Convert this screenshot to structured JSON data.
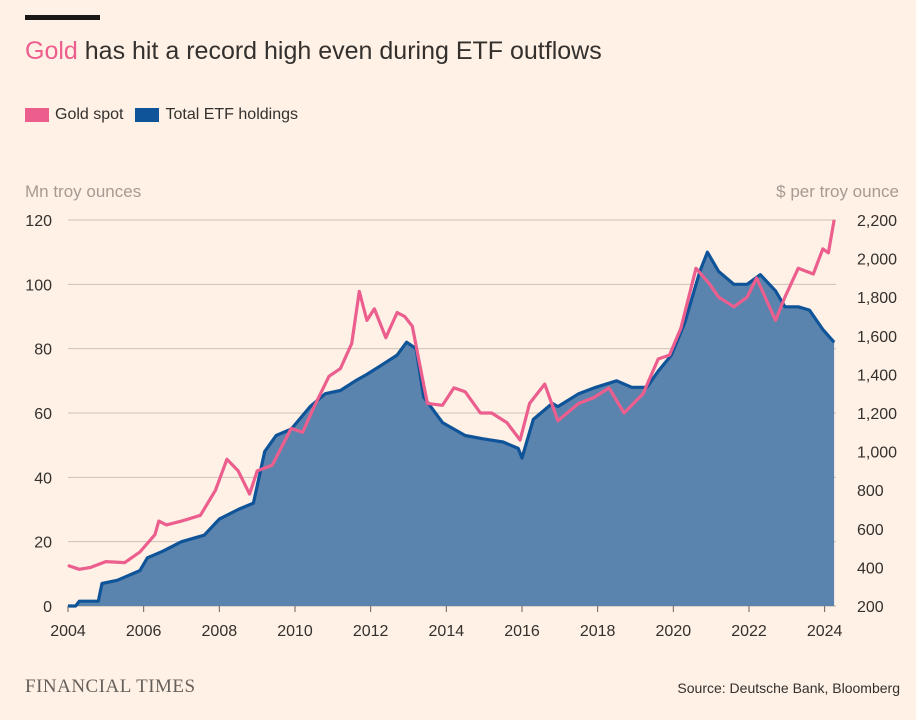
{
  "header": {
    "title_highlight": "Gold",
    "title_rest": " has hit a record high even during ETF outflows"
  },
  "footer": {
    "source": "Source: Deutsche Bank, Bloomberg",
    "brand": "FINANCIAL TIMES"
  },
  "colors": {
    "gold_spot": "#eb5e8d",
    "etf_line": "#0f5499",
    "etf_fill": "#5a84ad",
    "grid": "#ccc1b7",
    "axis_text": "#33302e",
    "unit_text": "#a59b94"
  },
  "chart_data": {
    "type": "line",
    "title": "Gold has hit a record high even during ETF outflows",
    "legend_position": "top-left",
    "grid": true,
    "left_axis": {
      "label": "Mn troy ounces",
      "range": [
        0,
        120
      ],
      "ticks": [
        0,
        20,
        40,
        60,
        80,
        100,
        120
      ],
      "tick_labels": [
        "0",
        "20",
        "40",
        "60",
        "80",
        "100",
        "120"
      ]
    },
    "right_axis": {
      "label": "$ per troy ounce",
      "range": [
        200,
        2200
      ],
      "ticks": [
        200,
        400,
        600,
        800,
        1000,
        1200,
        1400,
        1600,
        1800,
        2000,
        2200
      ],
      "tick_labels": [
        "200",
        "400",
        "600",
        "800",
        "1,000",
        "1,200",
        "1,400",
        "1,600",
        "1,800",
        "2,000",
        "2,200"
      ]
    },
    "x_axis": {
      "range": [
        2004,
        2024.3
      ],
      "ticks": [
        2004,
        2006,
        2008,
        2010,
        2012,
        2014,
        2016,
        2018,
        2020,
        2022,
        2024
      ],
      "tick_labels": [
        "2004",
        "2006",
        "2008",
        "2010",
        "2012",
        "2014",
        "2016",
        "2018",
        "2020",
        "2022",
        "2024"
      ]
    },
    "series": [
      {
        "name": "Gold spot",
        "axis": "right",
        "style": "line",
        "x": [
          2004.0,
          2004.3,
          2004.6,
          2005.0,
          2005.5,
          2005.9,
          2006.3,
          2006.4,
          2006.6,
          2007.0,
          2007.5,
          2007.9,
          2008.2,
          2008.5,
          2008.8,
          2009.0,
          2009.4,
          2009.9,
          2010.2,
          2010.5,
          2010.9,
          2011.2,
          2011.5,
          2011.7,
          2011.9,
          2012.1,
          2012.4,
          2012.7,
          2012.9,
          2013.1,
          2013.3,
          2013.5,
          2013.9,
          2014.2,
          2014.5,
          2014.9,
          2015.2,
          2015.6,
          2015.95,
          2016.2,
          2016.6,
          2016.95,
          2017.5,
          2017.9,
          2018.3,
          2018.7,
          2019.2,
          2019.6,
          2019.9,
          2020.2,
          2020.6,
          2020.95,
          2021.2,
          2021.6,
          2021.95,
          2022.2,
          2022.7,
          2022.95,
          2023.3,
          2023.7,
          2023.95,
          2024.1,
          2024.25
        ],
        "values": [
          410,
          390,
          400,
          430,
          425,
          480,
          570,
          640,
          620,
          640,
          670,
          800,
          960,
          900,
          780,
          900,
          930,
          1120,
          1100,
          1230,
          1390,
          1430,
          1560,
          1830,
          1680,
          1740,
          1590,
          1720,
          1700,
          1650,
          1450,
          1250,
          1240,
          1330,
          1310,
          1200,
          1200,
          1150,
          1060,
          1250,
          1350,
          1160,
          1250,
          1280,
          1330,
          1200,
          1300,
          1480,
          1500,
          1640,
          1950,
          1870,
          1800,
          1750,
          1800,
          1900,
          1680,
          1800,
          1950,
          1920,
          2050,
          2030,
          2200
        ]
      },
      {
        "name": "Total ETF holdings",
        "axis": "left",
        "style": "area",
        "x": [
          2004.0,
          2004.2,
          2004.3,
          2004.8,
          2004.9,
          2005.3,
          2005.9,
          2006.1,
          2006.5,
          2007.0,
          2007.6,
          2008.0,
          2008.5,
          2008.9,
          2009.2,
          2009.5,
          2009.9,
          2010.4,
          2010.8,
          2011.2,
          2011.6,
          2011.9,
          2012.3,
          2012.7,
          2012.95,
          2013.2,
          2013.4,
          2013.9,
          2014.5,
          2014.95,
          2015.5,
          2015.9,
          2016.0,
          2016.3,
          2016.8,
          2016.95,
          2017.5,
          2017.95,
          2018.5,
          2018.9,
          2019.3,
          2019.6,
          2019.95,
          2020.3,
          2020.7,
          2020.9,
          2021.2,
          2021.6,
          2021.95,
          2022.3,
          2022.7,
          2022.95,
          2023.3,
          2023.6,
          2023.95,
          2024.1,
          2024.25
        ],
        "values": [
          0,
          0,
          1.5,
          1.5,
          7,
          8,
          11,
          15,
          17,
          20,
          22,
          27,
          30,
          32,
          48,
          53,
          55,
          62,
          66,
          67,
          70,
          72,
          75,
          78,
          82,
          80,
          65,
          57,
          53,
          52,
          51,
          49,
          46,
          58,
          63,
          62,
          66,
          68,
          70,
          68,
          68,
          73,
          78,
          88,
          104,
          110,
          104,
          100,
          100,
          103,
          98,
          93,
          93,
          92,
          86,
          84,
          82
        ]
      }
    ]
  }
}
